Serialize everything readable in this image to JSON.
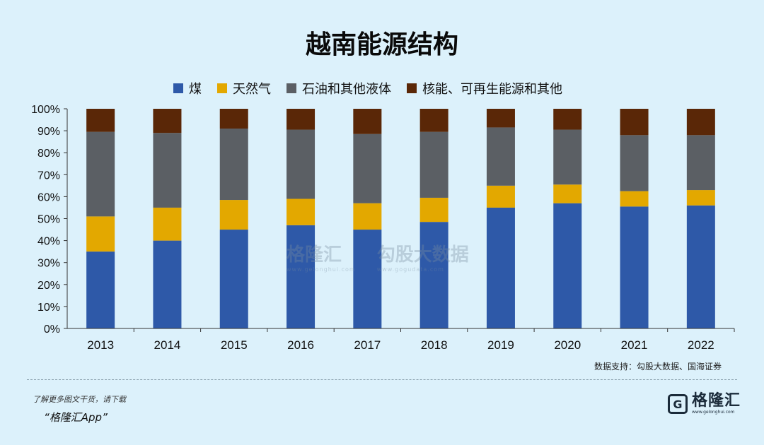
{
  "chart_data": {
    "type": "bar",
    "stacked": true,
    "title": "越南能源结构",
    "categories": [
      "2013",
      "2014",
      "2015",
      "2016",
      "2017",
      "2018",
      "2019",
      "2020",
      "2021",
      "2022"
    ],
    "series": [
      {
        "name": "煤",
        "color": "#2e59a8",
        "values": [
          35,
          40,
          45,
          47,
          45,
          48.5,
          55,
          57,
          55.5,
          56
        ]
      },
      {
        "name": "天然气",
        "color": "#e3a800",
        "values": [
          16,
          15,
          13.5,
          12,
          12,
          11,
          10,
          8.5,
          7,
          7
        ]
      },
      {
        "name": "石油和其他液体",
        "color": "#5b5f64",
        "values": [
          38.5,
          34,
          32.5,
          31.5,
          31.5,
          30,
          26.5,
          25,
          25.5,
          25
        ]
      },
      {
        "name": "核能、可再生能源和其他",
        "color": "#5a2707",
        "values": [
          10.5,
          11,
          9,
          9.5,
          11.5,
          10.5,
          8.5,
          9.5,
          12,
          12
        ]
      }
    ],
    "ylim": [
      0,
      100
    ],
    "yticks": [
      "0%",
      "10%",
      "20%",
      "30%",
      "40%",
      "50%",
      "60%",
      "70%",
      "80%",
      "90%",
      "100%"
    ],
    "xlabel": "",
    "ylabel": ""
  },
  "source": "数据支持：勾股大数据、国海证券",
  "promo": {
    "line1": "了解更多图文干货，请下载",
    "line2": "“格隆汇App”"
  },
  "brand": {
    "logo_letter": "G",
    "name": "格隆汇",
    "url": "www.gelonghui.com"
  },
  "watermark": {
    "left": "格隆汇",
    "left_sub": "www.gelonghui.com",
    "right": "勾股大数据",
    "right_sub": "www.gogudata.com"
  }
}
